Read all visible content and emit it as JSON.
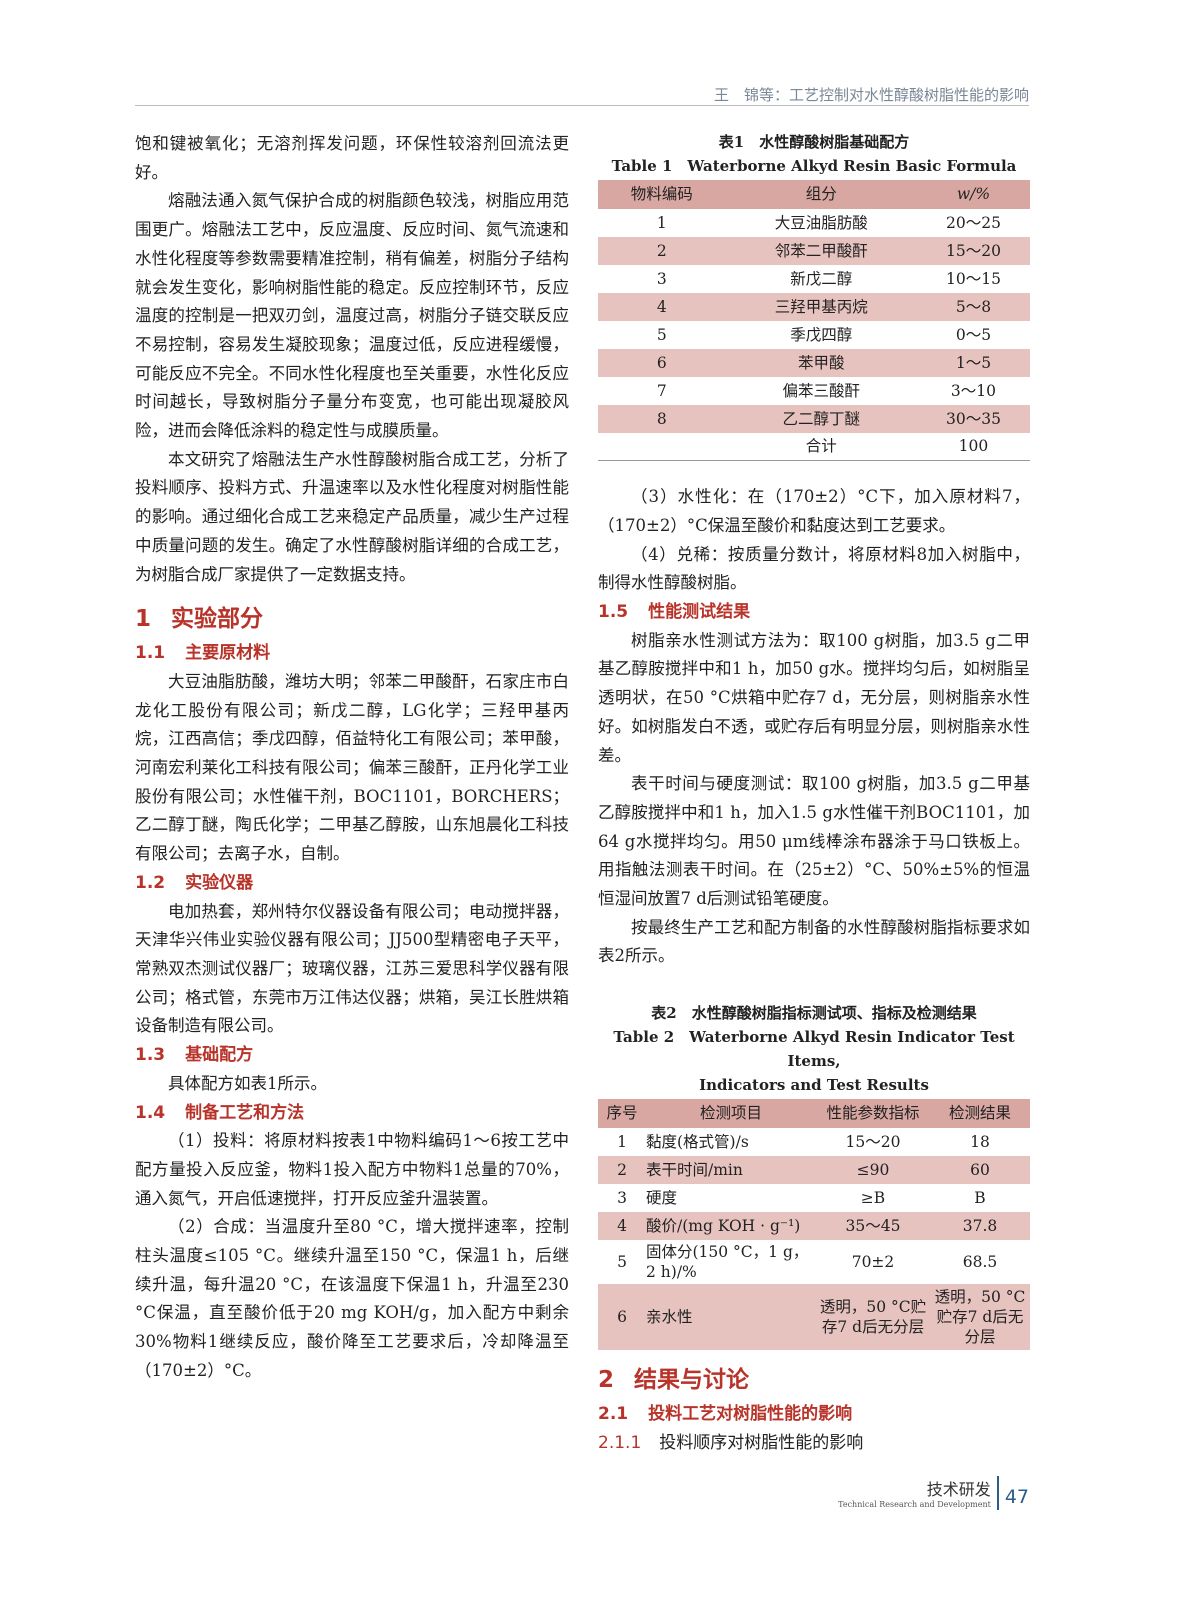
{
  "header": {
    "running_title": "王　锦等：工艺控制对水性醇酸树脂性能的影响"
  },
  "left": {
    "p1": "饱和键被氧化；无溶剂挥发问题，环保性较溶剂回流法更好。",
    "p2": "熔融法通入氮气保护合成的树脂颜色较浅，树脂应用范围更广。熔融法工艺中，反应温度、反应时间、氮气流速和水性化程度等参数需要精准控制，稍有偏差，树脂分子结构就会发生变化，影响树脂性能的稳定。反应控制环节，反应温度的控制是一把双刃剑，温度过高，树脂分子链交联反应不易控制，容易发生凝胶现象；温度过低，反应进程缓慢，可能反应不完全。不同水性化程度也至关重要，水性化反应时间越长，导致树脂分子量分布变宽，也可能出现凝胶风险，进而会降低涂料的稳定性与成膜质量。",
    "p3": "本文研究了熔融法生产水性醇酸树脂合成工艺，分析了投料顺序、投料方式、升温速率以及水性化程度对树脂性能的影响。通过细化合成工艺来稳定产品质量，减少生产过程中质量问题的发生。确定了水性醇酸树脂详细的合成工艺，为树脂合成厂家提供了一定数据支持。",
    "s1_num": "1",
    "s1_title": "实验部分",
    "s11_num": "1.1",
    "s11_title": "主要原材料",
    "p4": "大豆油脂肪酸，潍坊大明；邻苯二甲酸酐，石家庄市白龙化工股份有限公司；新戊二醇，LG化学；三羟甲基丙烷，江西高信；季戊四醇，佰益特化工有限公司；苯甲酸，河南宏利莱化工科技有限公司；偏苯三酸酐，正丹化学工业股份有限公司；水性催干剂，BOC1101，BORCHERS；乙二醇丁醚，陶氏化学；二甲基乙醇胺，山东旭晨化工科技有限公司；去离子水，自制。",
    "s12_num": "1.2",
    "s12_title": "实验仪器",
    "p5": "电加热套，郑州特尔仪器设备有限公司；电动搅拌器，天津华兴伟业实验仪器有限公司；JJ500型精密电子天平，常熟双杰测试仪器厂；玻璃仪器，江苏三爱思科学仪器有限公司；格式管，东莞市万江伟达仪器；烘箱，吴江长胜烘箱设备制造有限公司。",
    "s13_num": "1.3",
    "s13_title": "基础配方",
    "p6": "具体配方如表1所示。",
    "s14_num": "1.4",
    "s14_title": "制备工艺和方法",
    "p7": "（1）投料：将原材料按表1中物料编码1～6按工艺中配方量投入反应釜，物料1投入配方中物料1总量的70%，通入氮气，开启低速搅拌，打开反应釜升温装置。",
    "p8": "（2）合成：当温度升至80 °C，增大搅拌速率，控制柱头温度≤105 °C。继续升温至150 °C，保温1 h，后继续升温，每升温20 °C，在该温度下保温1 h，升温至230 °C保温，直至酸价低于20 mg KOH/g，加入配方中剩余30%物料1继续反应，酸价降至工艺要求后，冷却降温至（170±2）°C。"
  },
  "table1": {
    "caption_cn": "表1　水性醇酸树脂基础配方",
    "caption_en": "Table 1　Waterborne Alkyd Resin Basic Formula",
    "headers": [
      "物料编码",
      "组分",
      "w/%"
    ],
    "rows": [
      [
        "1",
        "大豆油脂肪酸",
        "20～25"
      ],
      [
        "2",
        "邻苯二甲酸酐",
        "15～20"
      ],
      [
        "3",
        "新戊二醇",
        "10～15"
      ],
      [
        "4",
        "三羟甲基丙烷",
        "5～8"
      ],
      [
        "5",
        "季戊四醇",
        "0～5"
      ],
      [
        "6",
        "苯甲酸",
        "1～5"
      ],
      [
        "7",
        "偏苯三酸酐",
        "3～10"
      ],
      [
        "8",
        "乙二醇丁醚",
        "30～35"
      ]
    ],
    "total_label": "合计",
    "total_value": "100"
  },
  "right": {
    "p1": "（3）水性化：在（170±2）°C下，加入原材料7，（170±2）°C保温至酸价和黏度达到工艺要求。",
    "p2": "（4）兑稀：按质量分数计，将原材料8加入树脂中，制得水性醇酸树脂。",
    "s15_num": "1.5",
    "s15_title": "性能测试结果",
    "p3": "树脂亲水性测试方法为：取100 g树脂，加3.5 g二甲基乙醇胺搅拌中和1 h，加50 g水。搅拌均匀后，如树脂呈透明状，在50 °C烘箱中贮存7 d，无分层，则树脂亲水性好。如树脂发白不透，或贮存后有明显分层，则树脂亲水性差。",
    "p4": "表干时间与硬度测试：取100 g树脂，加3.5 g二甲基乙醇胺搅拌中和1 h，加入1.5 g水性催干剂BOC1101，加64 g水搅拌均匀。用50 μm线棒涂布器涂于马口铁板上。用指触法测表干时间。在（25±2）°C、50%±5%的恒温恒湿间放置7 d后测试铅笔硬度。",
    "p5": "按最终生产工艺和配方制备的水性醇酸树脂指标要求如表2所示。",
    "s2_num": "2",
    "s2_title": "结果与讨论",
    "s21_num": "2.1",
    "s21_title": "投料工艺对树脂性能的影响",
    "s211_num": "2.1.1",
    "s211_title": "投料顺序对树脂性能的影响"
  },
  "table2": {
    "caption_cn": "表2　水性醇酸树脂指标测试项、指标及检测结果",
    "caption_en1": "Table 2　Waterborne Alkyd Resin Indicator Test Items,",
    "caption_en2": "Indicators and Test Results",
    "headers": [
      "序号",
      "检测项目",
      "性能参数指标",
      "检测结果"
    ],
    "rows": [
      [
        "1",
        "黏度(格式管)/s",
        "15～20",
        "18"
      ],
      [
        "2",
        "表干时间/min",
        "≤90",
        "60"
      ],
      [
        "3",
        "硬度",
        "≥B",
        "B"
      ],
      [
        "4",
        "酸价/(mg KOH · g⁻¹)",
        "35～45",
        "37.8"
      ],
      [
        "5",
        "固体分(150 °C，1 g，2 h)/%",
        "70±2",
        "68.5"
      ],
      [
        "6",
        "亲水性",
        "透明，50 °C贮存7 d后无分层",
        "透明，50 °C贮存7 d后无分层"
      ]
    ]
  },
  "footer": {
    "section_cn": "技术研发",
    "section_en": "Technical Research and Development",
    "page": "47"
  },
  "colors": {
    "accent_red": "#b8332a",
    "table_pink": "#d8a7a2",
    "footer_blue": "#2c5d8a"
  }
}
